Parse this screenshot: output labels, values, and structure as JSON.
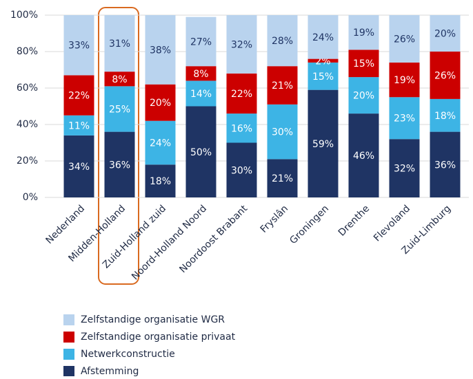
{
  "chart_data": {
    "type": "stacked_bar",
    "categories": [
      "Nederland",
      "Midden-Holland",
      "Zuid-Holland zuid",
      "Noord-Holland Noord",
      "Noordoost Brabant",
      "Fryslân",
      "Groningen",
      "Drenthe",
      "Flevoland",
      "Zuid-Limburg"
    ],
    "series": [
      {
        "name": "Zelfstandige organisatie WGR",
        "color": "#b9d3ee",
        "values": [
          33,
          31,
          38,
          27,
          32,
          28,
          24,
          19,
          26,
          20
        ],
        "value_labels": [
          "33%",
          "31%",
          "38%",
          "27%",
          "32%",
          "28%",
          "24%",
          "19%",
          "26%",
          "20%"
        ]
      },
      {
        "name": "Zelfstandige organisatie privaat",
        "color": "#cc0000",
        "values": [
          22,
          8,
          20,
          8,
          22,
          21,
          2,
          15,
          19,
          26
        ],
        "value_labels": [
          "22%",
          "8%",
          "20%",
          "8%",
          "22%",
          "21%",
          "2%",
          "15%",
          "19%",
          "26%"
        ]
      },
      {
        "name": "Netwerkconstructie",
        "color": "#3db4e5",
        "values": [
          11,
          25,
          24,
          14,
          16,
          30,
          15,
          20,
          23,
          18
        ],
        "value_labels": [
          "11%",
          "25%",
          "24%",
          "14%",
          "16%",
          "30%",
          "15%",
          "20%",
          "23%",
          "18%"
        ]
      },
      {
        "name": "Afstemming",
        "color": "#1f3464",
        "values": [
          34,
          36,
          18,
          50,
          30,
          21,
          59,
          46,
          32,
          36
        ],
        "value_labels": [
          "34%",
          "36%",
          "18%",
          "50%",
          "30%",
          "21%",
          "59%",
          "46%",
          "32%",
          "36%"
        ]
      }
    ],
    "ylim": [
      0,
      100
    ],
    "yticks": [
      {
        "value": 0,
        "label": "0%"
      },
      {
        "value": 20,
        "label": "20%"
      },
      {
        "value": 40,
        "label": "40%"
      },
      {
        "value": 60,
        "label": "60%"
      },
      {
        "value": 80,
        "label": "80%"
      },
      {
        "value": 100,
        "label": "100%"
      }
    ],
    "grid": true
  }
}
